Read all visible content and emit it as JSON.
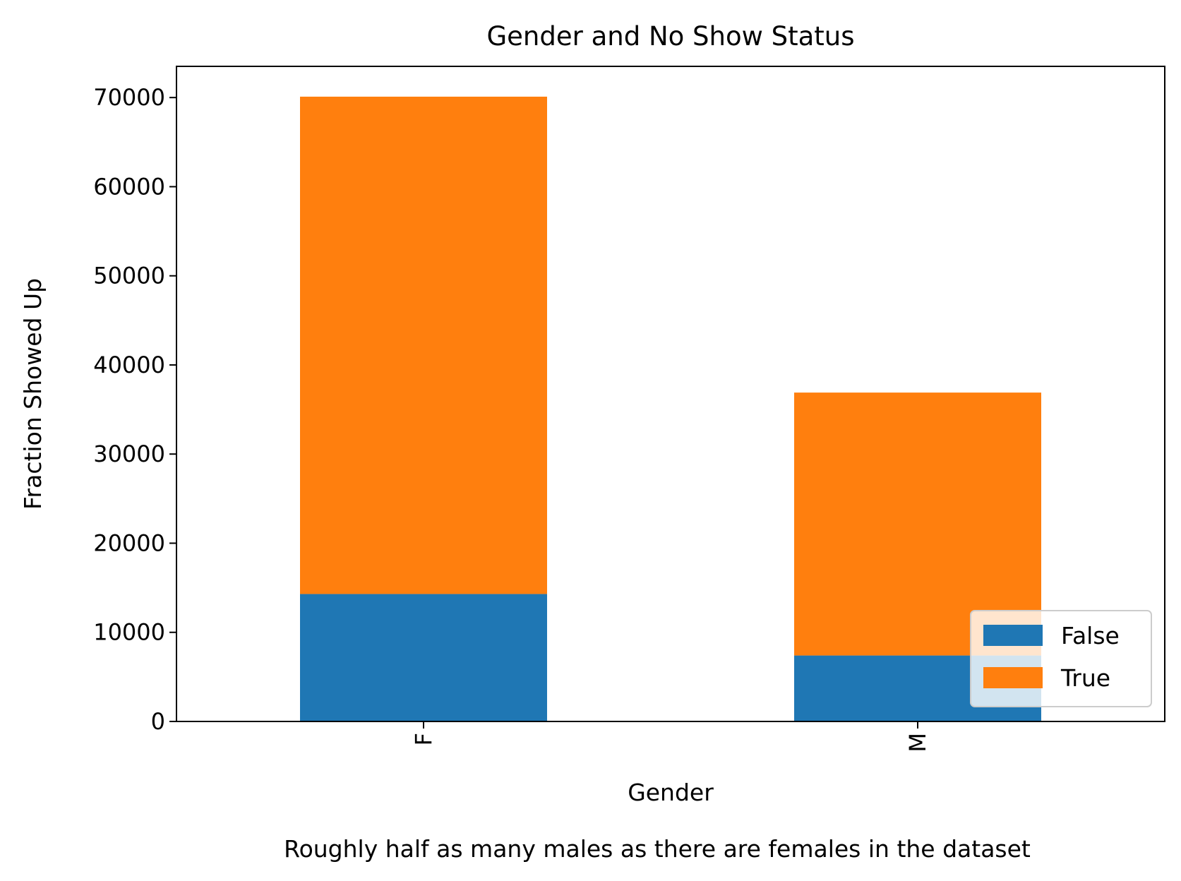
{
  "chart_data": {
    "type": "bar",
    "stacked": true,
    "title": "Gender and No Show Status",
    "xlabel": "Gender",
    "ylabel": "Fraction Showed Up",
    "caption": "Roughly half as many males as there are females in the dataset",
    "categories": [
      "F",
      "M"
    ],
    "series": [
      {
        "name": "False",
        "values": [
          14300,
          7400
        ],
        "color": "#1f77b4"
      },
      {
        "name": "True",
        "values": [
          55800,
          29500
        ],
        "color": "#ff7f0e"
      }
    ],
    "ylim": [
      0,
      73500
    ],
    "yticks": [
      0,
      10000,
      20000,
      30000,
      40000,
      50000,
      60000,
      70000
    ],
    "ytick_labels": [
      "0",
      "10000",
      "20000",
      "30000",
      "40000",
      "50000",
      "60000",
      "70000"
    ],
    "xtick_rotation": "vertical",
    "grid": false,
    "legend": {
      "position": "bottom-right",
      "entries": [
        "False",
        "True"
      ]
    }
  }
}
